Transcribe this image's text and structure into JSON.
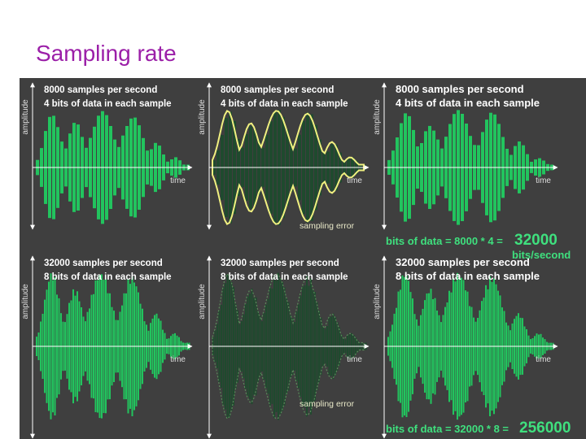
{
  "slide": {
    "title": "Sampling rate"
  },
  "axes": {
    "y_label": "amplitude",
    "x_label": "time"
  },
  "annotations": {
    "sampling_error": "sampling error"
  },
  "rows": [
    {
      "samples_label": "8000 samples per second",
      "bits_label": "4 bits of data in each sample"
    },
    {
      "samples_label": "32000 samples per second",
      "bits_label": "8 bits of data in each sample"
    }
  ],
  "formulas": [
    {
      "text": "bits of data = 8000 * 4 =",
      "result": "32000",
      "unit": "bits/second"
    },
    {
      "text": "bits of data = 32000 * 8 =",
      "result": "256000",
      "unit": ""
    }
  ],
  "colors": {
    "background": "#3f3f3f",
    "waveform": "#22c45e",
    "waveform_dark": "#1f4a2e",
    "error_outline": "#f0f080",
    "title": "#9b1fa8"
  },
  "icons": {
    "axis_arrows": "arrow-icon"
  }
}
